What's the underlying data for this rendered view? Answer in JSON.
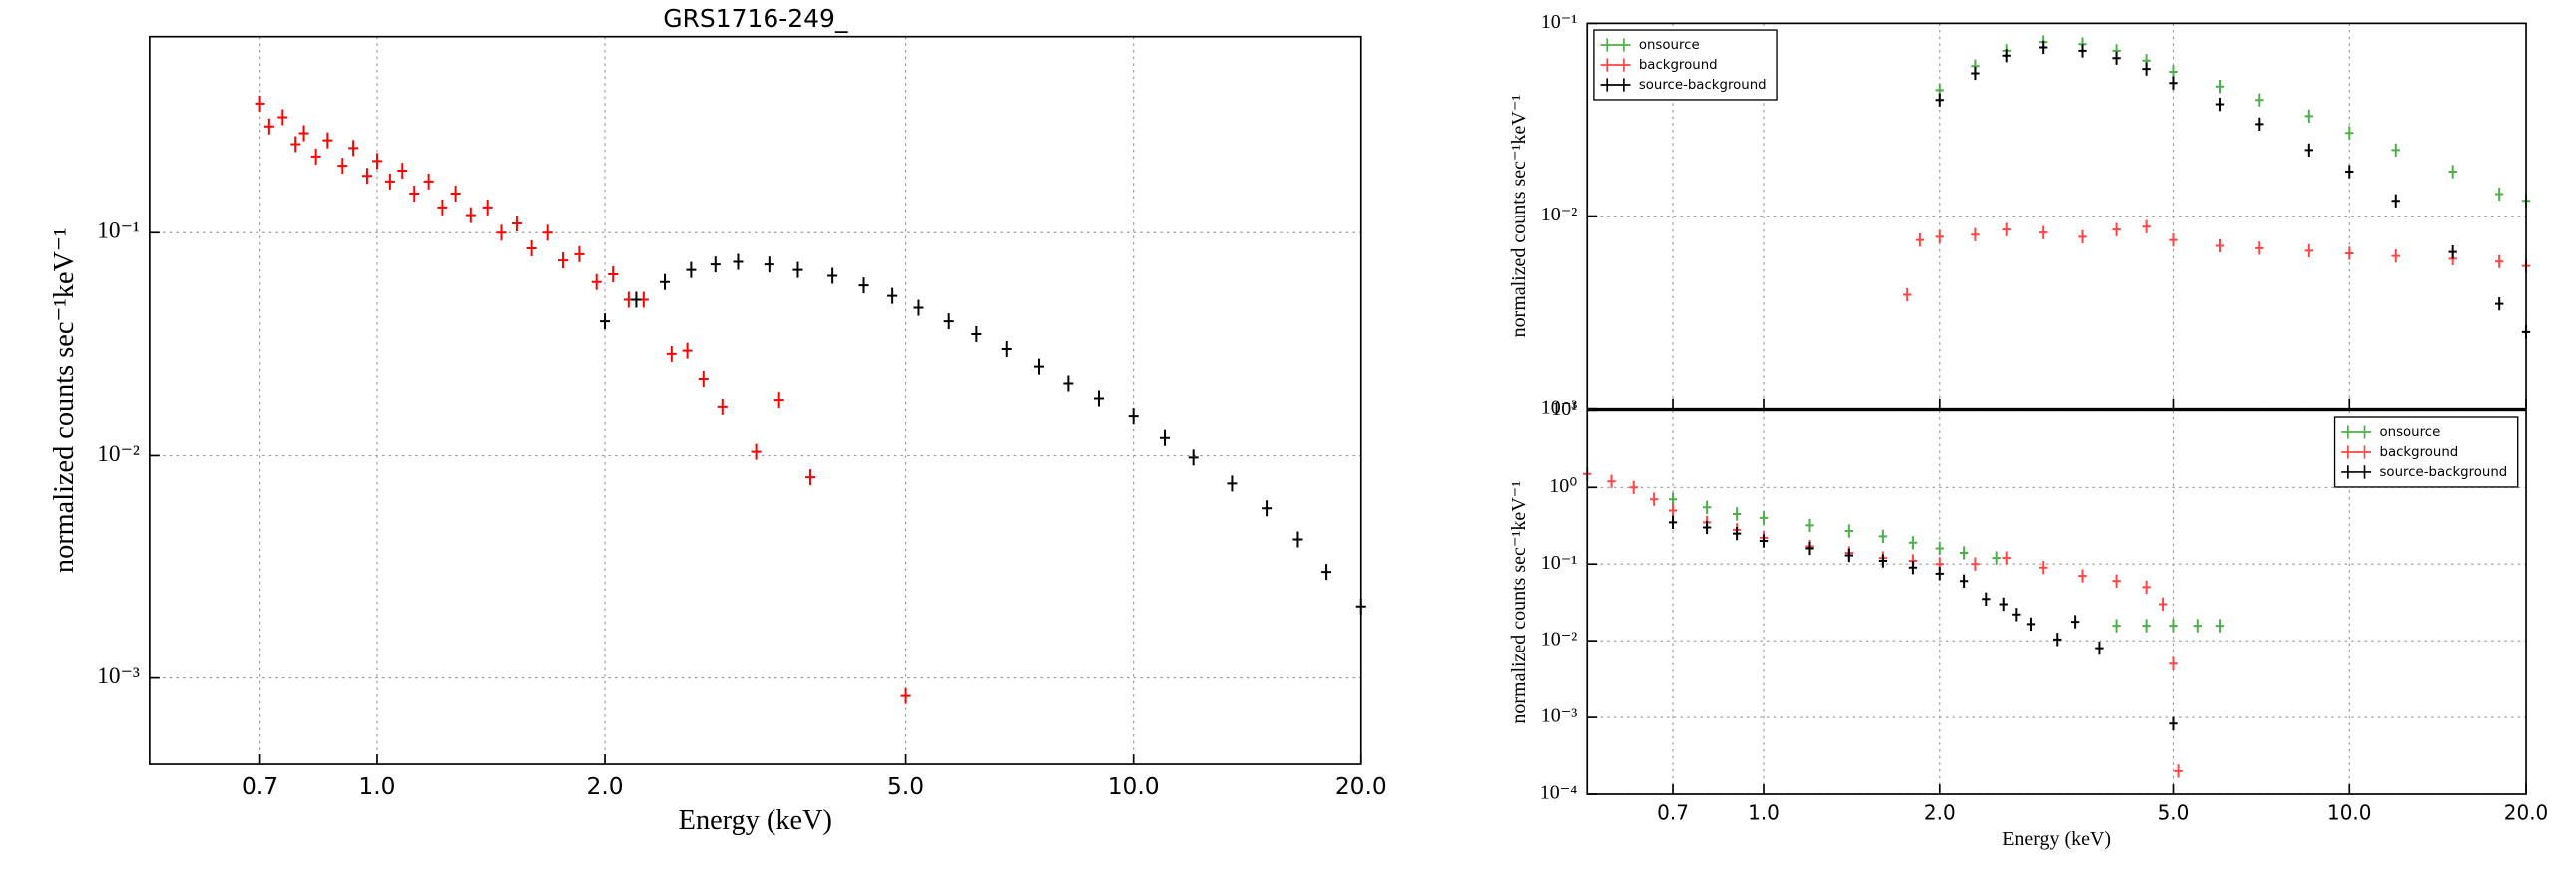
{
  "chart_data": [
    {
      "type": "scatter",
      "title": "GRS1716-249_",
      "xlabel": "Energy (keV)",
      "ylabel": "normalized counts sec⁻¹keV⁻¹",
      "xlog": true,
      "ylog": true,
      "grid": true,
      "xlim": [
        0.5,
        20
      ],
      "ylim": [
        0.00041,
        0.76
      ],
      "xticks": [
        0.7,
        {
          "value": 1,
          "label": "1.0"
        },
        {
          "value": 2,
          "label": "2.0"
        },
        {
          "value": 5,
          "label": "5.0"
        },
        {
          "value": 10,
          "label": "10.0"
        },
        {
          "value": 20,
          "label": "20.0"
        }
      ],
      "yticks": [
        {
          "value": 0.001,
          "label": "10⁻³"
        },
        {
          "value": 0.01,
          "label": "10⁻²"
        },
        {
          "value": 0.1,
          "label": "10⁻¹"
        }
      ],
      "series": [
        {
          "color": "#ff0000",
          "x": [
            0.7,
            0.72,
            0.75,
            0.78,
            0.8,
            0.83,
            0.86,
            0.9,
            0.93,
            0.97,
            1.0,
            1.04,
            1.08,
            1.12,
            1.17,
            1.22,
            1.27,
            1.33,
            1.4,
            1.46,
            1.53,
            1.6,
            1.68,
            1.76,
            1.85,
            1.95,
            2.05,
            2.15,
            2.25,
            2.45,
            2.57,
            2.7,
            2.86,
            3.17,
            3.4,
            3.74,
            5.0
          ],
          "values": [
            0.38,
            0.3,
            0.33,
            0.25,
            0.28,
            0.22,
            0.26,
            0.2,
            0.24,
            0.18,
            0.21,
            0.17,
            0.19,
            0.15,
            0.17,
            0.13,
            0.15,
            0.12,
            0.13,
            0.1,
            0.11,
            0.085,
            0.1,
            0.075,
            0.08,
            0.06,
            0.065,
            0.05,
            0.05,
            0.0285,
            0.0295,
            0.022,
            0.0165,
            0.0104,
            0.0177,
            0.008,
            0.00083
          ]
        },
        {
          "color": "#000000",
          "x": [
            2.0,
            2.2,
            2.4,
            2.6,
            2.8,
            3.0,
            3.3,
            3.6,
            4.0,
            4.4,
            4.8,
            5.2,
            5.7,
            6.2,
            6.8,
            7.5,
            8.2,
            9.0,
            10,
            11,
            12,
            13.5,
            15,
            16.5,
            18,
            20
          ],
          "values": [
            0.04,
            0.05,
            0.06,
            0.068,
            0.072,
            0.074,
            0.072,
            0.068,
            0.064,
            0.058,
            0.052,
            0.046,
            0.04,
            0.035,
            0.03,
            0.025,
            0.021,
            0.018,
            0.015,
            0.012,
            0.0098,
            0.0075,
            0.0058,
            0.0042,
            0.003,
            0.0021
          ]
        }
      ]
    },
    {
      "type": "scatter",
      "ylabel": "normalized counts sec⁻¹keV⁻¹",
      "xlog": true,
      "ylog": true,
      "grid": true,
      "legend": "upper left",
      "xlim": [
        0.5,
        20
      ],
      "ylim": [
        0.001,
        0.1
      ],
      "xticks": [
        0.7,
        1,
        2,
        5,
        10,
        20
      ],
      "yticks": [
        {
          "value": 0.001,
          "label": "10⁻³"
        },
        {
          "value": 0.01,
          "label": "10⁻²"
        },
        {
          "value": 0.1,
          "label": "10⁻¹"
        }
      ],
      "series": [
        {
          "name": "onsource",
          "color": "#4daf4a",
          "x": [
            2.0,
            2.3,
            2.6,
            3.0,
            3.5,
            4.0,
            4.5,
            5.0,
            6.0,
            7.0,
            8.5,
            10,
            12,
            15,
            18,
            20
          ],
          "values": [
            0.045,
            0.06,
            0.072,
            0.08,
            0.078,
            0.072,
            0.064,
            0.056,
            0.047,
            0.04,
            0.033,
            0.027,
            0.022,
            0.017,
            0.013,
            0.012
          ]
        },
        {
          "name": "background",
          "color": "#ff4444",
          "x": [
            1.76,
            1.85,
            2.0,
            2.3,
            2.6,
            3.0,
            3.5,
            4.0,
            4.5,
            5.0,
            6.0,
            7.0,
            8.5,
            10,
            12,
            15,
            18,
            20
          ],
          "values": [
            0.0039,
            0.0075,
            0.0078,
            0.008,
            0.0085,
            0.0082,
            0.0078,
            0.0085,
            0.0088,
            0.0075,
            0.007,
            0.0068,
            0.0066,
            0.0064,
            0.0062,
            0.006,
            0.0058,
            0.0055
          ]
        },
        {
          "name": "source-background",
          "color": "#000000",
          "x": [
            2.0,
            2.3,
            2.6,
            3.0,
            3.5,
            4.0,
            4.5,
            5.0,
            6.0,
            7.0,
            8.5,
            10,
            12,
            15,
            18,
            20
          ],
          "values": [
            0.04,
            0.055,
            0.068,
            0.075,
            0.072,
            0.066,
            0.058,
            0.049,
            0.038,
            0.03,
            0.022,
            0.017,
            0.012,
            0.0065,
            0.0035,
            0.0025
          ]
        }
      ]
    },
    {
      "type": "scatter",
      "xlabel": "Energy (keV)",
      "ylabel": "normalized counts sec⁻¹keV⁻¹",
      "xlog": true,
      "ylog": true,
      "grid": true,
      "legend": "upper right",
      "xlim": [
        0.5,
        20
      ],
      "ylim": [
        0.0001,
        10
      ],
      "xticks": [
        0.7,
        {
          "value": 1,
          "label": "1.0"
        },
        {
          "value": 2,
          "label": "2.0"
        },
        {
          "value": 5,
          "label": "5.0"
        },
        {
          "value": 10,
          "label": "10.0"
        },
        {
          "value": 20,
          "label": "20.0"
        }
      ],
      "yticks": [
        {
          "value": 0.0001,
          "label": "10⁻⁴"
        },
        {
          "value": 0.001,
          "label": "10⁻³"
        },
        {
          "value": 0.01,
          "label": "10⁻²"
        },
        {
          "value": 0.1,
          "label": "10⁻¹"
        },
        {
          "value": 1,
          "label": "10⁰"
        },
        {
          "value": 10,
          "label": "10¹"
        }
      ],
      "series": [
        {
          "name": "onsource",
          "color": "#4daf4a",
          "x": [
            0.7,
            0.8,
            0.9,
            1.0,
            1.2,
            1.4,
            1.6,
            1.8,
            2.0,
            2.2,
            2.5,
            4.0,
            4.5,
            5.0,
            5.5,
            6.0
          ],
          "values": [
            0.7,
            0.55,
            0.45,
            0.4,
            0.32,
            0.27,
            0.23,
            0.19,
            0.16,
            0.14,
            0.12,
            0.0157,
            0.0157,
            0.0157,
            0.0157,
            0.0157
          ]
        },
        {
          "name": "background",
          "color": "#ff4444",
          "x": [
            0.5,
            0.55,
            0.6,
            0.65,
            0.7,
            0.8,
            0.9,
            1.0,
            1.2,
            1.4,
            1.6,
            1.8,
            2.0,
            2.3,
            2.6,
            3.0,
            3.5,
            4.0,
            4.5,
            4.8,
            5.0,
            5.1
          ],
          "values": [
            1.5,
            1.2,
            1.0,
            0.7,
            0.5,
            0.35,
            0.28,
            0.22,
            0.17,
            0.14,
            0.12,
            0.11,
            0.1,
            0.1,
            0.12,
            0.09,
            0.07,
            0.06,
            0.05,
            0.03,
            0.005,
            0.0002
          ]
        },
        {
          "name": "source-background",
          "color": "#000000",
          "x": [
            0.7,
            0.8,
            0.9,
            1.0,
            1.2,
            1.4,
            1.6,
            1.8,
            2.0,
            2.2,
            2.4,
            2.57,
            2.7,
            2.86,
            3.17,
            3.4,
            3.74,
            5.0
          ],
          "values": [
            0.35,
            0.3,
            0.25,
            0.2,
            0.16,
            0.13,
            0.11,
            0.09,
            0.075,
            0.06,
            0.035,
            0.03,
            0.022,
            0.0165,
            0.0104,
            0.0177,
            0.008,
            0.00083
          ]
        }
      ]
    }
  ]
}
